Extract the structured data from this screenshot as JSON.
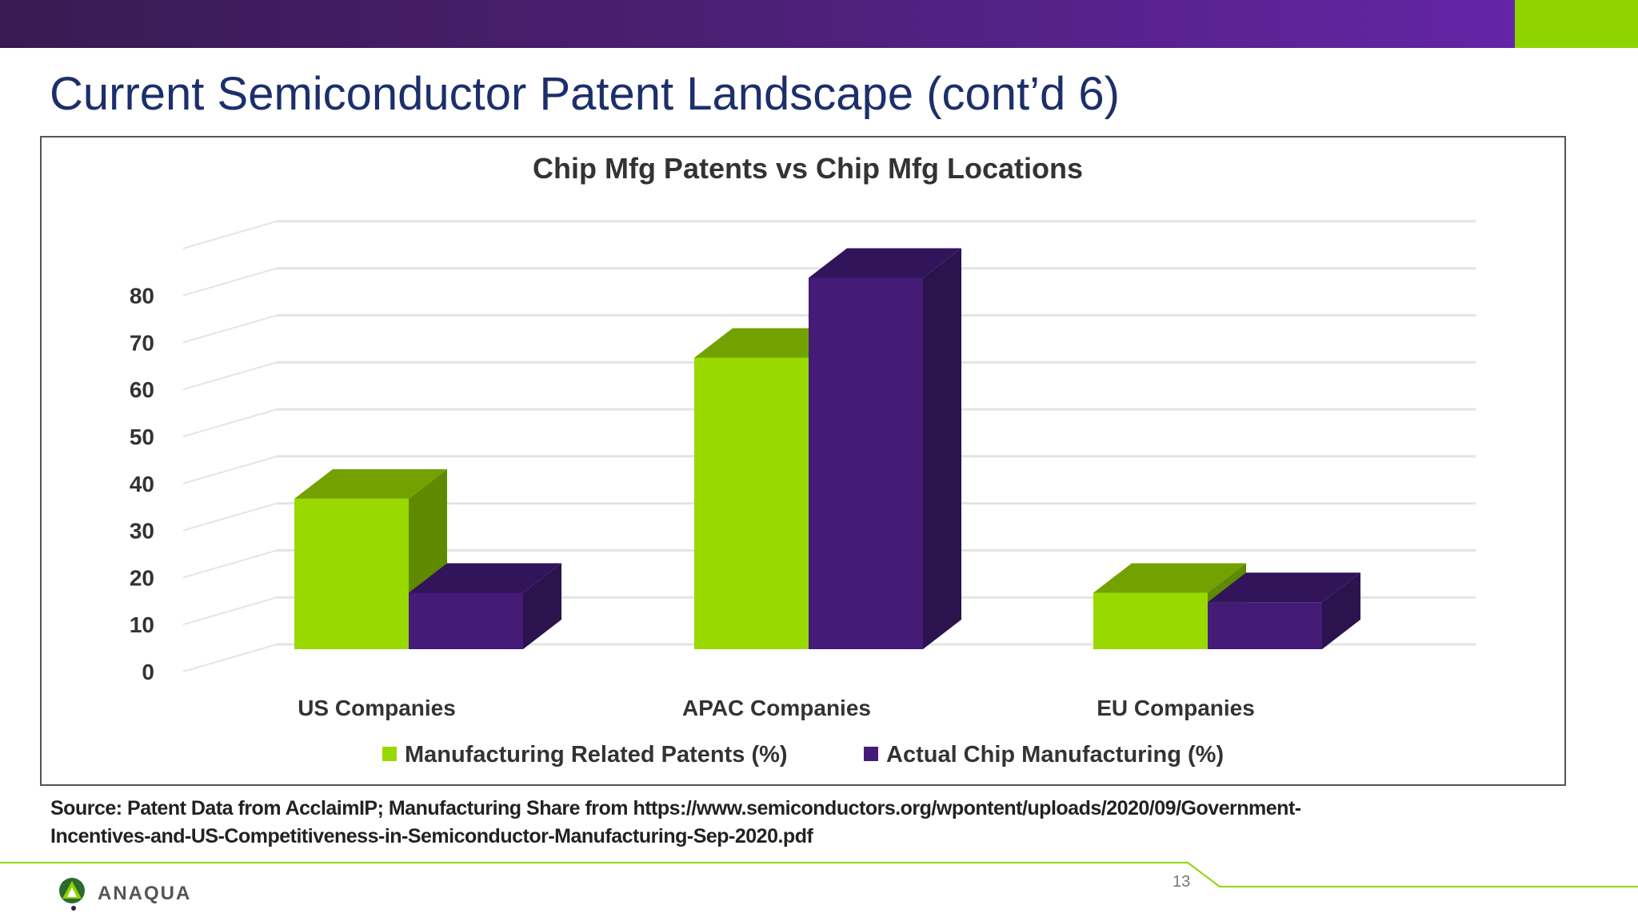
{
  "slide": {
    "title": "Current Semiconductor Patent Landscape (cont’d 6)",
    "source_line1": "Source: Patent Data from AcclaimIP; Manufacturing Share from https://www.semiconductors.org/wpontent/uploads/2020/09/Government-",
    "source_line2": "Incentives-and-US-Competitiveness-in-Semiconductor-Manufacturing-Sep-2020.pdf",
    "page_number": "13",
    "logo_text": "ANAQUA"
  },
  "colors": {
    "brand_purple": "#4a1f72",
    "brand_green": "#8fd400",
    "series_green": "#99d900",
    "series_purple": "#441c78"
  },
  "chart_data": {
    "type": "bar",
    "style": "3d-clustered-column",
    "title": "Chip Mfg Patents vs Chip Mfg Locations",
    "categories": [
      "US Companies",
      "APAC Companies",
      "EU Companies"
    ],
    "series": [
      {
        "name": "Manufacturing Related Patents (%)",
        "color": "#99d900",
        "values": [
          32,
          62,
          12
        ]
      },
      {
        "name": "Actual Chip Manufacturing (%)",
        "color": "#441c78",
        "values": [
          12,
          79,
          10
        ]
      }
    ],
    "yticks": [
      "0",
      "10",
      "20",
      "30",
      "40",
      "50",
      "60",
      "70",
      "80"
    ],
    "ylim": [
      0,
      90
    ],
    "grid": true,
    "legend": "bottom"
  }
}
